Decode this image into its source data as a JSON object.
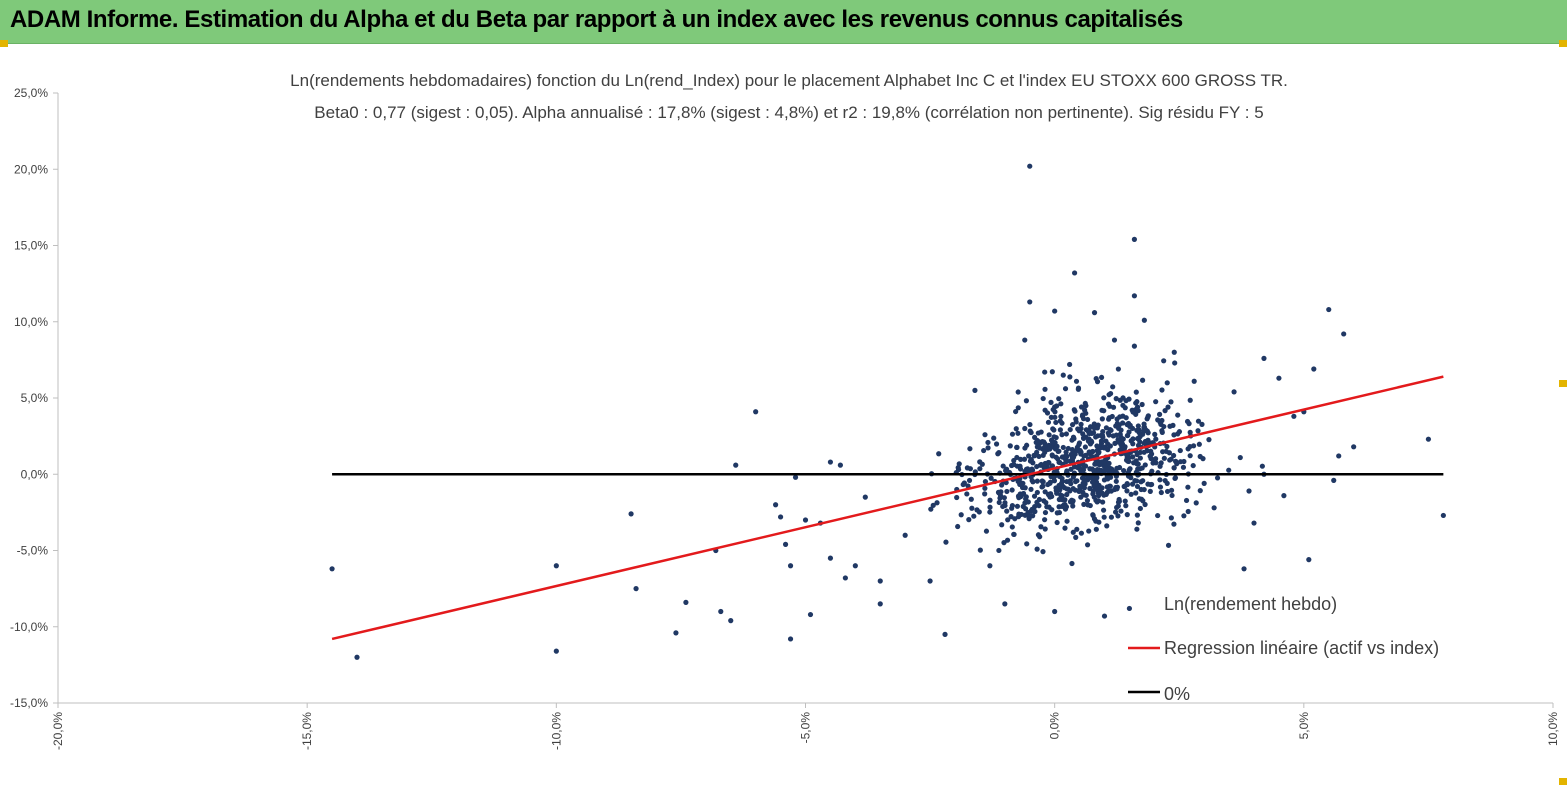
{
  "header": {
    "title": "ADAM Informe. Estimation du Alpha et du Beta par rapport à un index avec les revenus connus capitalisés"
  },
  "colors": {
    "banner": "#7fc97a",
    "points": "#203864",
    "regression": "#e31a1c",
    "zero_line": "#000000",
    "handle": "#e3b400"
  },
  "chart_data": {
    "type": "scatter",
    "title": "Ln(rendements hebdomadaires) fonction du Ln(rend_Index) pour le placement Alphabet Inc C et l'index EU STOXX 600 GROSS TR.",
    "subtitle": "Beta0 : 0,77 (sigest : 0,05). Alpha annualisé : 17,8% (sigest : 4,8%) et r2 : 19,8% (corrélation non pertinente). Sig résidu FY : 5",
    "xlim": [
      -0.2,
      0.1
    ],
    "ylim": [
      -0.15,
      0.25
    ],
    "x_ticks": [
      "-20,0%",
      "-15,0%",
      "-10,0%",
      "-5,0%",
      "0,0%",
      "5,0%",
      "10,0%"
    ],
    "y_ticks": [
      "25,0%",
      "20,0%",
      "15,0%",
      "10,0%",
      "5,0%",
      "0,0%",
      "-5,0%",
      "-10,0%",
      "-15,0%"
    ],
    "grid": false,
    "legend_placement": "bottom-right",
    "series": [
      {
        "name": "Ln(rendement hebdo)",
        "type": "scatter",
        "points": [
          [
            -0.145,
            -0.062
          ],
          [
            -0.14,
            -0.12
          ],
          [
            -0.1,
            -0.06
          ],
          [
            -0.1,
            -0.116
          ],
          [
            -0.085,
            -0.026
          ],
          [
            -0.084,
            -0.075
          ],
          [
            -0.076,
            -0.104
          ],
          [
            -0.074,
            -0.084
          ],
          [
            -0.068,
            -0.05
          ],
          [
            -0.067,
            -0.09
          ],
          [
            -0.065,
            -0.096
          ],
          [
            -0.06,
            0.041
          ],
          [
            -0.053,
            -0.108
          ],
          [
            -0.049,
            -0.092
          ],
          [
            -0.045,
            0.008
          ],
          [
            -0.043,
            0.006
          ],
          [
            -0.042,
            -0.068
          ],
          [
            -0.064,
            0.006
          ],
          [
            -0.056,
            -0.02
          ],
          [
            -0.055,
            -0.028
          ],
          [
            -0.054,
            -0.046
          ],
          [
            -0.053,
            -0.06
          ],
          [
            -0.052,
            -0.002
          ],
          [
            -0.05,
            -0.03
          ],
          [
            -0.047,
            -0.032
          ],
          [
            -0.045,
            -0.055
          ],
          [
            -0.04,
            -0.06
          ],
          [
            -0.038,
            -0.015
          ],
          [
            -0.035,
            -0.07
          ],
          [
            -0.035,
            -0.085
          ],
          [
            -0.03,
            -0.04
          ],
          [
            -0.025,
            -0.07
          ],
          [
            -0.022,
            -0.105
          ],
          [
            0.051,
            -0.056
          ],
          [
            -0.013,
            -0.06
          ],
          [
            -0.01,
            -0.085
          ],
          [
            0.0,
            -0.09
          ],
          [
            0.01,
            -0.093
          ],
          [
            0.015,
            -0.088
          ],
          [
            0.03,
            -0.006
          ],
          [
            0.032,
            -0.022
          ],
          [
            0.036,
            0.054
          ],
          [
            0.038,
            -0.062
          ],
          [
            0.039,
            -0.011
          ],
          [
            0.04,
            -0.032
          ],
          [
            0.042,
            0.0
          ],
          [
            0.042,
            0.076
          ],
          [
            0.045,
            0.063
          ],
          [
            0.046,
            -0.014
          ],
          [
            0.048,
            0.038
          ],
          [
            0.05,
            0.041
          ],
          [
            0.052,
            0.069
          ],
          [
            0.055,
            0.108
          ],
          [
            0.056,
            -0.004
          ],
          [
            0.057,
            0.012
          ],
          [
            0.058,
            0.092
          ],
          [
            0.06,
            0.018
          ],
          [
            0.075,
            0.023
          ],
          [
            0.078,
            -0.027
          ],
          [
            -0.005,
            0.202
          ],
          [
            0.016,
            0.154
          ],
          [
            0.004,
            0.132
          ],
          [
            0.016,
            0.117
          ],
          [
            -0.005,
            0.113
          ],
          [
            0.0,
            0.107
          ],
          [
            0.008,
            0.106
          ],
          [
            -0.016,
            0.055
          ],
          [
            0.028,
            0.061
          ],
          [
            -0.002,
            0.067
          ],
          [
            0.003,
            0.072
          ],
          [
            0.024,
            0.08
          ],
          [
            0.018,
            0.101
          ],
          [
            0.016,
            0.084
          ],
          [
            -0.006,
            0.088
          ],
          [
            0.012,
            0.088
          ]
        ]
      },
      {
        "name": "Regression linéaire (actif vs index)",
        "type": "line",
        "points": [
          [
            -0.145,
            -0.108
          ],
          [
            0.078,
            0.064
          ]
        ]
      },
      {
        "name": "0%",
        "type": "line",
        "points": [
          [
            -0.145,
            0.0
          ],
          [
            0.078,
            0.0
          ]
        ]
      }
    ]
  }
}
